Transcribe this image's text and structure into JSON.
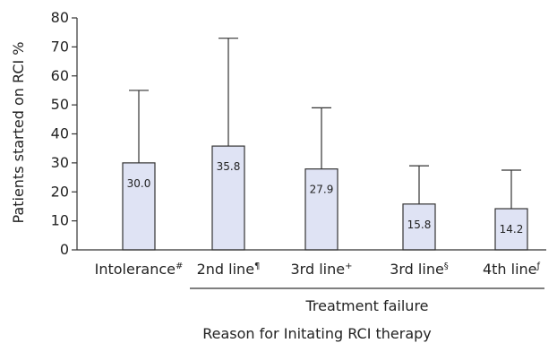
{
  "chart_data": {
    "type": "bar",
    "categories": [
      {
        "text": "Intolerance",
        "sup": "#"
      },
      {
        "text": "2nd line",
        "sup": "¶"
      },
      {
        "text": "3rd line",
        "sup": "+"
      },
      {
        "text": "3rd line",
        "sup": "§"
      },
      {
        "text": "4th line",
        "sup": "ƒ"
      }
    ],
    "values": [
      30.0,
      35.8,
      27.9,
      15.8,
      14.2
    ],
    "value_labels": [
      "30.0",
      "35.8",
      "27.9",
      "15.8",
      "14.2"
    ],
    "error_upper": [
      55,
      73,
      49,
      29,
      27.5
    ],
    "ylim": [
      0,
      80
    ],
    "yticks": [
      0,
      10,
      20,
      30,
      40,
      50,
      60,
      70,
      80
    ],
    "ylabel": "Patients started on RCI %",
    "xlabel": "Reason for Initating RCI therapy",
    "group_label": "Treatment failure",
    "group_span": [
      1,
      4
    ],
    "bar_fill": "#dfe3f4",
    "bar_stroke": "#333333"
  }
}
